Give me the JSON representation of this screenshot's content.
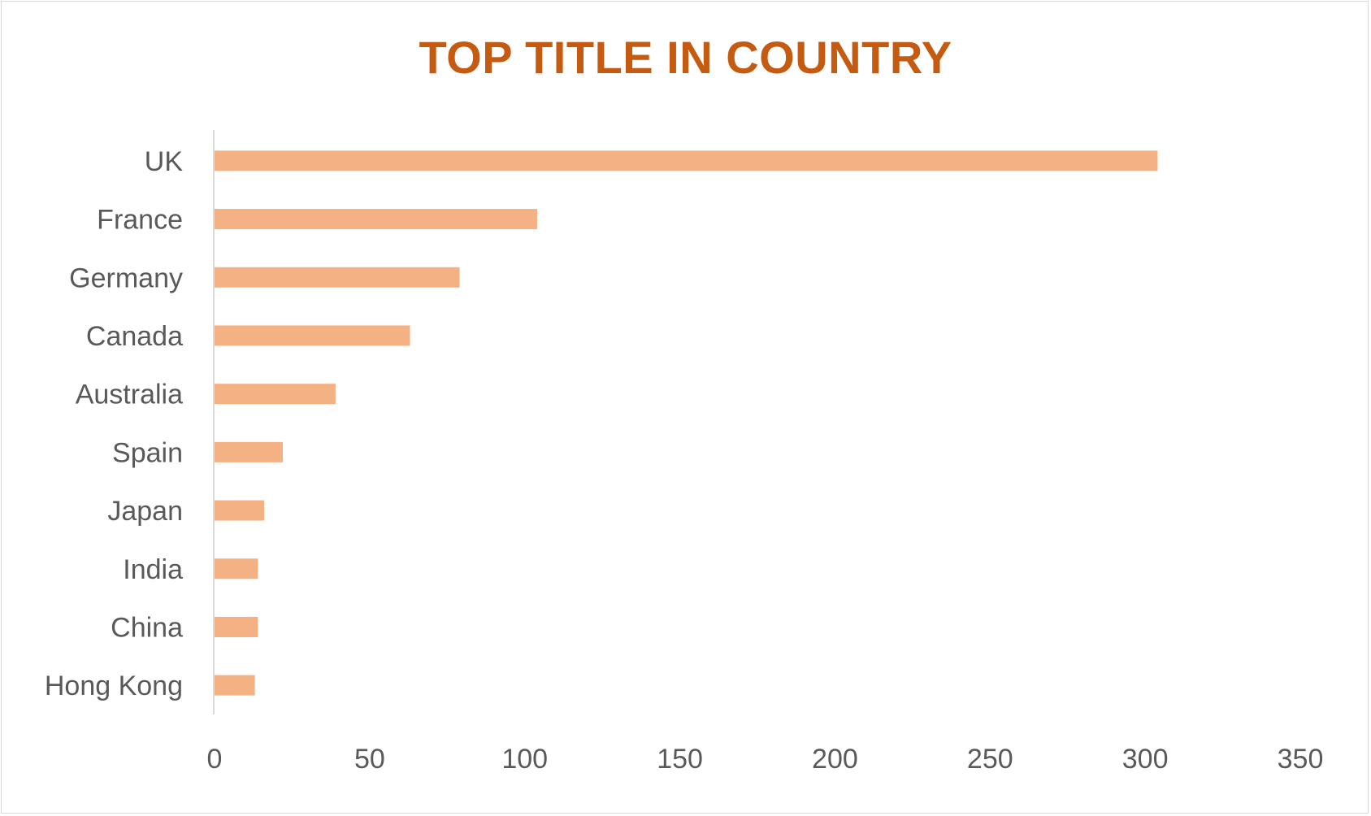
{
  "chart_data": {
    "type": "bar",
    "orientation": "horizontal",
    "title": "TOP TITLE IN COUNTRY",
    "xlabel": "",
    "ylabel": "",
    "categories": [
      "UK",
      "France",
      "Germany",
      "Canada",
      "Australia",
      "Spain",
      "Japan",
      "India",
      "China",
      "Hong Kong"
    ],
    "values": [
      304,
      104,
      79,
      63,
      39,
      22,
      16,
      14,
      14,
      13
    ],
    "xlim": [
      0,
      350
    ],
    "xticks": [
      0,
      50,
      100,
      150,
      200,
      250,
      300,
      350
    ],
    "grid": false,
    "legend": "none"
  },
  "colors": {
    "title": "#C55A11",
    "bar": "#F4B183",
    "axis": "#d9d9d9",
    "text": "#595959"
  }
}
